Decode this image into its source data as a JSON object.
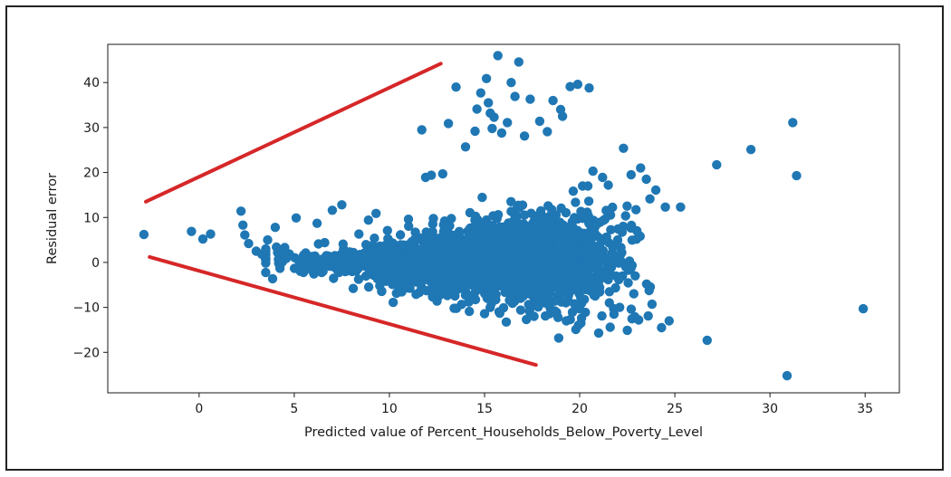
{
  "chart_data": {
    "type": "scatter",
    "title": "",
    "xlabel": "Predicted value of Percent_Households_Below_Poverty_Level",
    "ylabel": "Residual error",
    "xlim": [
      -4.8,
      36.8
    ],
    "ylim": [
      -29,
      48.5
    ],
    "xticks": [
      "0",
      "5",
      "10",
      "15",
      "20",
      "25",
      "30",
      "35"
    ],
    "xtick_values": [
      0,
      5,
      10,
      15,
      20,
      25,
      30,
      35
    ],
    "yticks": [
      "−20",
      "−10",
      "0",
      "10",
      "20",
      "30",
      "40"
    ],
    "ytick_values": [
      -20,
      -10,
      0,
      10,
      20,
      30,
      40
    ],
    "grid": false,
    "legend": "none",
    "colors": {
      "points": "#1f77b4",
      "guides": "#d62728",
      "axes": "#1a1a1a"
    },
    "guide_lines": [
      {
        "x": [
          -2.8,
          12.7
        ],
        "y": [
          13.5,
          44.2
        ]
      },
      {
        "x": [
          -2.6,
          17.7
        ],
        "y": [
          1.2,
          -22.8
        ]
      }
    ],
    "outliers": {
      "x": [
        -2.9,
        -0.4,
        0.2,
        0.6,
        2.2,
        2.3,
        2.4,
        2.6,
        3.0,
        3.3,
        3.6,
        4.0,
        4.5,
        5.1,
        5.6,
        6.2,
        6.6,
        7.0,
        7.5,
        7.7,
        8.4,
        8.9,
        9.3,
        9.9,
        10.5,
        11.0,
        11.7,
        12.0,
        12.2,
        12.9,
        13.1,
        13.5,
        13.9,
        14.5,
        14.6,
        14.8,
        15.1,
        15.2,
        15.4,
        15.5,
        15.7,
        15.9,
        16.2,
        16.4,
        16.6,
        16.8,
        17.1,
        17.4,
        17.9,
        18.3,
        18.6,
        19.0,
        19.5,
        19.9,
        20.5,
        20.7,
        21.2,
        21.5,
        22.3,
        22.7,
        23.2,
        23.5,
        24.0,
        24.5,
        25.3,
        26.7,
        27.2,
        29.0,
        30.9,
        31.2,
        31.4,
        34.9,
        14.2,
        15.0,
        15.8,
        16.9,
        17.6,
        18.2,
        18.7,
        19.3,
        20.1,
        21.0,
        21.8,
        22.5,
        23.1,
        23.6,
        24.3,
        13.4,
        12.5,
        11.4,
        10.2,
        9.6,
        8.1,
        16.0,
        17.2,
        18.9,
        19.8,
        20.3,
        21.6,
        22.1,
        22.9,
        23.8,
        24.7,
        15.3,
        14.0,
        12.8,
        11.9,
        19.1
      ],
      "y": [
        6.2,
        6.9,
        5.2,
        6.3,
        11.4,
        8.3,
        6.1,
        4.2,
        2.5,
        1.8,
        5.0,
        7.8,
        3.3,
        9.9,
        2.1,
        8.7,
        4.4,
        11.6,
        12.8,
        1.0,
        6.3,
        9.4,
        10.9,
        7.1,
        -6.2,
        9.6,
        29.5,
        3.6,
        19.4,
        9.2,
        30.9,
        39.0,
        2.1,
        29.2,
        34.1,
        37.7,
        40.9,
        35.5,
        29.8,
        32.3,
        46.0,
        28.8,
        31.1,
        40.0,
        36.9,
        44.6,
        28.1,
        36.3,
        31.4,
        29.1,
        36.0,
        34.0,
        39.1,
        39.6,
        38.8,
        20.3,
        18.9,
        17.2,
        25.4,
        19.5,
        21.0,
        18.5,
        16.1,
        12.3,
        12.3,
        -17.3,
        21.7,
        25.1,
        -25.2,
        31.1,
        19.3,
        -10.3,
        -10.9,
        -11.4,
        -11.3,
        -10.6,
        -12.0,
        -11.9,
        -10.8,
        -13.0,
        -12.4,
        -15.7,
        -11.5,
        -15.1,
        -12.8,
        -11.9,
        -14.5,
        -10.2,
        -8.6,
        -7.1,
        -8.9,
        -6.4,
        -5.8,
        -10.1,
        -12.7,
        -16.8,
        -14.9,
        -11.1,
        -14.4,
        -10.0,
        -12.1,
        -9.3,
        -13.0,
        33.2,
        25.7,
        19.7,
        18.9,
        32.5
      ]
    },
    "cloud": {
      "count": 2600,
      "x_center": 17.5,
      "y_center": 0,
      "note_visible": false
    }
  }
}
